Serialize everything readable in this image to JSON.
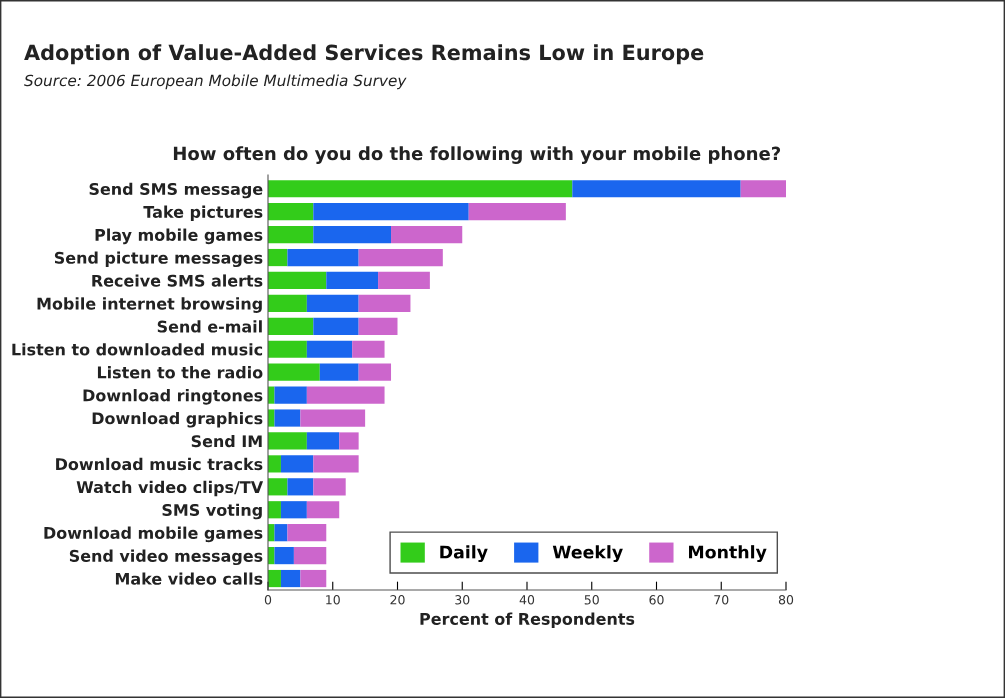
{
  "chart_data": {
    "type": "bar",
    "orientation": "horizontal",
    "stacked": true,
    "title": "Adoption of Value-Added Services Remains Low in Europe",
    "subtitle": "How often do you do the following with your mobile phone?",
    "annotations": [
      "Source: 2006 European Mobile Multimedia Survey"
    ],
    "xlabel": "Percent of Respondents",
    "categories": [
      "Send SMS message",
      "Take pictures",
      "Play mobile games",
      "Send picture messages",
      "Receive SMS alerts",
      "Mobile internet browsing",
      "Send e-mail",
      "Listen to downloaded music",
      "Listen to the radio",
      "Download ringtones",
      "Download graphics",
      "Send IM",
      "Download music tracks",
      "Watch video clips/TV",
      "SMS voting",
      "Download mobile games",
      "Send video messages",
      "Make video calls"
    ],
    "series": [
      {
        "name": "Daily",
        "color": "#33cc1a",
        "values": [
          47,
          7,
          7,
          3,
          9,
          6,
          7,
          6,
          8,
          1,
          1,
          6,
          2,
          3,
          2,
          1,
          1,
          2
        ]
      },
      {
        "name": "Weekly",
        "color": "#1a66ee",
        "values": [
          26,
          24,
          12,
          11,
          8,
          8,
          7,
          7,
          6,
          5,
          4,
          5,
          5,
          4,
          4,
          2,
          3,
          3
        ]
      },
      {
        "name": "Monthly",
        "color": "#cc66cc",
        "values": [
          7,
          15,
          11,
          13,
          8,
          8,
          6,
          5,
          5,
          12,
          10,
          3,
          7,
          5,
          5,
          6,
          5,
          4
        ]
      }
    ],
    "xlim": [
      0,
      80
    ],
    "xticks": [
      0,
      10,
      20,
      30,
      40,
      50,
      60,
      70,
      80
    ],
    "grid": false,
    "legend": "bottom right"
  }
}
